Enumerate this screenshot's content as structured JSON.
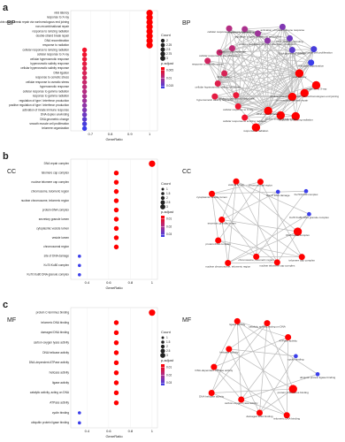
{
  "chart_data": [
    {
      "type": "scatter",
      "panel": "a",
      "title": "BP",
      "x_label": "GeneRatio",
      "categories": [
        "viral latency",
        "response to X-ray",
        "double-strand break repair via nonhomologous end joining",
        "non-recombinational repair",
        "response to ionizing radiation",
        "double-strand break repair",
        "DNA recombination",
        "response to radiation",
        "cellular response to ionizing radiation",
        "cellular response to X-ray",
        "cellular hyperosmotic response",
        "hyperosmotic salinity response",
        "cellular hyperosmotic salinity response",
        "DNA ligation",
        "response to osmotic stress",
        "cellular response to osmotic stress",
        "hyperosmotic response",
        "cellular response to gamma radiation",
        "response to gamma radiation",
        "regulation of type I interferon production",
        "positive regulation of type I interferon production",
        "activation of innate immune response",
        "DNA duplex unwinding",
        "DNA geometric change",
        "smooth muscle cell proliferation",
        "telomere organization"
      ],
      "values": [
        1.0,
        1.0,
        1.0,
        1.0,
        1.0,
        1.0,
        1.0,
        1.0,
        0.67,
        0.67,
        0.67,
        0.67,
        0.67,
        0.67,
        0.67,
        0.67,
        0.67,
        0.67,
        0.67,
        0.67,
        0.67,
        0.67,
        0.67,
        0.67,
        0.67,
        0.67
      ],
      "counts": [
        3,
        3,
        3,
        3,
        3,
        3,
        3,
        3,
        2,
        2,
        2,
        2,
        2,
        2,
        2,
        2,
        2,
        2,
        2,
        2,
        2,
        2,
        2,
        2,
        2,
        2
      ],
      "colors": [
        "#ff0000",
        "#ff0000",
        "#ff0000",
        "#ff0000",
        "#ff0000",
        "#ff0000",
        "#ff0000",
        "#ff0000",
        "#f5102a",
        "#f01530",
        "#eb1838",
        "#e51c42",
        "#df1f4c",
        "#d82256",
        "#d02560",
        "#c8286b",
        "#bf2b76",
        "#b52e82",
        "#aa318e",
        "#9e339a",
        "#9035a6",
        "#8037b3",
        "#6e39c0",
        "#5b3bcd",
        "#473ddb",
        "#3b3eea"
      ],
      "xlim": [
        0.6,
        1.04
      ],
      "xticks": [
        0.7,
        0.8,
        0.9,
        1.0
      ],
      "count_legend": {
        "title": "Count",
        "ticks": [
          2.0,
          2.25,
          2.5,
          2.75,
          3.0
        ]
      },
      "color_legend": {
        "title": "p.adjust",
        "ticks": [
          0.005,
          0.01,
          0.015
        ]
      }
    },
    {
      "type": "scatter",
      "panel": "b",
      "title": "CC",
      "x_label": "GeneRatio",
      "categories": [
        "DNA repair complex",
        "telomere cap complex",
        "nuclear telomere cap complex",
        "chromosome, telomeric region",
        "nuclear chromosome, telomeric region",
        "protein-DNA complex",
        "secretory granule lumen",
        "cytoplasmic vesicle lumen",
        "vesicle lumen",
        "chromosomal region",
        "site of DNA damage",
        "Ku70:Ku80 complex",
        "Ku70:Ku80 DNA granule complex"
      ],
      "values": [
        1.0,
        0.67,
        0.67,
        0.67,
        0.67,
        0.67,
        0.67,
        0.67,
        0.67,
        0.67,
        0.33,
        0.33,
        0.33
      ],
      "counts": [
        3,
        2,
        2,
        2,
        2,
        2,
        2,
        2,
        2,
        2,
        1,
        1,
        1
      ],
      "colors": [
        "#ff0000",
        "#ff0000",
        "#ff0000",
        "#ff0000",
        "#ff0000",
        "#ff0000",
        "#ff0000",
        "#ff0000",
        "#ff0000",
        "#ff0000",
        "#3b3eea",
        "#3b3eea",
        "#3b3eea"
      ],
      "xlim": [
        0.25,
        1.05
      ],
      "xticks": [
        0.4,
        0.6,
        0.8,
        1.0
      ],
      "count_legend": {
        "title": "Count",
        "ticks": [
          1.0,
          1.5,
          2.0,
          2.5,
          3.0
        ]
      },
      "color_legend": {
        "title": "p.adjust",
        "ticks": [
          0.01,
          0.02,
          0.03
        ]
      }
    },
    {
      "type": "scatter",
      "panel": "c",
      "title": "MF",
      "x_label": "GeneRatio",
      "categories": [
        "protein C-terminus binding",
        "telomeric DNA binding",
        "damaged DNA binding",
        "carbon-oxygen lyase activity",
        "DNA helicase activity",
        "DNA-dependent ATPase activity",
        "helicase activity",
        "ligase activity",
        "catalytic activity, acting on DNA",
        "ATPase activity",
        "cyclin binding",
        "ubiquitin protein ligase binding"
      ],
      "values": [
        1.0,
        0.67,
        0.67,
        0.67,
        0.67,
        0.67,
        0.67,
        0.67,
        0.67,
        0.67,
        0.33,
        0.33
      ],
      "counts": [
        3,
        2,
        2,
        2,
        2,
        2,
        2,
        2,
        2,
        2,
        1,
        1
      ],
      "colors": [
        "#ff0000",
        "#ff0000",
        "#ff0000",
        "#ff0000",
        "#ff0000",
        "#ff0000",
        "#ff0000",
        "#ff0000",
        "#ff0000",
        "#ff0000",
        "#3b3eea",
        "#3b3eea"
      ],
      "xlim": [
        0.25,
        1.05
      ],
      "xticks": [
        0.4,
        0.6,
        0.8,
        1.0
      ],
      "count_legend": {
        "title": "Count",
        "ticks": [
          1.0,
          1.5,
          2.0,
          2.5,
          3.0
        ]
      },
      "color_legend": {
        "title": "p.adjust",
        "ticks": [
          0.01,
          0.02,
          0.03
        ]
      }
    }
  ]
}
